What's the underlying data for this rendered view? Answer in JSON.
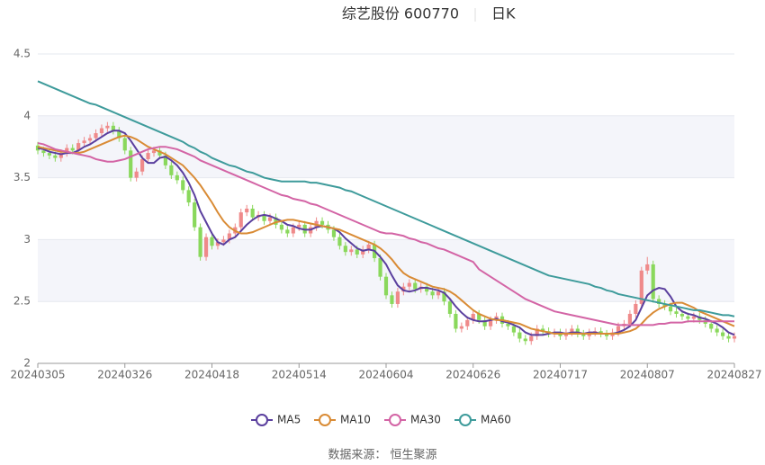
{
  "chart_data": {
    "type": "candlestick",
    "title": "综艺股份 600770",
    "subtitle": "日K",
    "source": "数据来源： 恒生聚源",
    "up_color": "#ef8a8a",
    "down_color": "#8ad85c",
    "split_area": true,
    "legend": "bottom",
    "ylim": [
      2,
      4.5
    ],
    "yticks": [
      2,
      2.5,
      3,
      3.5,
      4,
      4.5
    ],
    "categories": [
      "20240305",
      null,
      null,
      null,
      null,
      null,
      null,
      null,
      null,
      null,
      null,
      null,
      null,
      null,
      null,
      "20240326",
      null,
      null,
      null,
      null,
      null,
      null,
      null,
      null,
      null,
      null,
      null,
      null,
      null,
      null,
      "20240418",
      null,
      null,
      null,
      null,
      null,
      null,
      null,
      null,
      null,
      null,
      null,
      null,
      null,
      null,
      "20240514",
      null,
      null,
      null,
      null,
      null,
      null,
      null,
      null,
      null,
      null,
      null,
      null,
      null,
      null,
      "20240604",
      null,
      null,
      null,
      null,
      null,
      null,
      null,
      null,
      null,
      null,
      null,
      null,
      null,
      null,
      "20240626",
      null,
      null,
      null,
      null,
      null,
      null,
      null,
      null,
      null,
      null,
      null,
      null,
      null,
      null,
      "20240717",
      null,
      null,
      null,
      null,
      null,
      null,
      null,
      null,
      null,
      null,
      null,
      null,
      null,
      null,
      "20240807",
      null,
      null,
      null,
      null,
      null,
      null,
      null,
      null,
      null,
      null,
      null,
      null,
      null,
      null,
      "20240827"
    ],
    "ohlc": [
      [
        3.76,
        3.72,
        3.69,
        3.79
      ],
      [
        3.72,
        3.7,
        3.67,
        3.75
      ],
      [
        3.7,
        3.68,
        3.65,
        3.73
      ],
      [
        3.68,
        3.66,
        3.63,
        3.71
      ],
      [
        3.66,
        3.7,
        3.63,
        3.73
      ],
      [
        3.7,
        3.74,
        3.67,
        3.77
      ],
      [
        3.74,
        3.72,
        3.69,
        3.77
      ],
      [
        3.72,
        3.78,
        3.69,
        3.81
      ],
      [
        3.78,
        3.8,
        3.75,
        3.83
      ],
      [
        3.8,
        3.82,
        3.77,
        3.85
      ],
      [
        3.82,
        3.86,
        3.79,
        3.89
      ],
      [
        3.86,
        3.9,
        3.83,
        3.93
      ],
      [
        3.9,
        3.92,
        3.87,
        3.95
      ],
      [
        3.92,
        3.88,
        3.85,
        3.95
      ],
      [
        3.88,
        3.82,
        3.79,
        3.91
      ],
      [
        3.82,
        3.72,
        3.69,
        3.85
      ],
      [
        3.72,
        3.5,
        3.47,
        3.75
      ],
      [
        3.5,
        3.55,
        3.47,
        3.58
      ],
      [
        3.55,
        3.65,
        3.52,
        3.68
      ],
      [
        3.65,
        3.7,
        3.62,
        3.73
      ],
      [
        3.7,
        3.72,
        3.67,
        3.75
      ],
      [
        3.72,
        3.68,
        3.65,
        3.75
      ],
      [
        3.68,
        3.6,
        3.57,
        3.71
      ],
      [
        3.6,
        3.52,
        3.49,
        3.63
      ],
      [
        3.52,
        3.48,
        3.45,
        3.55
      ],
      [
        3.48,
        3.4,
        3.37,
        3.51
      ],
      [
        3.4,
        3.3,
        3.27,
        3.43
      ],
      [
        3.3,
        3.1,
        3.07,
        3.33
      ],
      [
        3.1,
        2.86,
        2.83,
        3.13
      ],
      [
        2.86,
        3.02,
        2.83,
        3.05
      ],
      [
        3.02,
        2.95,
        2.92,
        3.05
      ],
      [
        2.95,
        2.98,
        2.92,
        3.01
      ],
      [
        2.98,
        3.0,
        2.95,
        3.03
      ],
      [
        3.0,
        3.05,
        2.97,
        3.08
      ],
      [
        3.05,
        3.1,
        3.02,
        3.13
      ],
      [
        3.1,
        3.22,
        3.07,
        3.25
      ],
      [
        3.22,
        3.25,
        3.19,
        3.28
      ],
      [
        3.25,
        3.18,
        3.15,
        3.28
      ],
      [
        3.18,
        3.2,
        3.15,
        3.23
      ],
      [
        3.2,
        3.15,
        3.12,
        3.23
      ],
      [
        3.15,
        3.18,
        3.12,
        3.21
      ],
      [
        3.18,
        3.12,
        3.09,
        3.21
      ],
      [
        3.12,
        3.08,
        3.05,
        3.15
      ],
      [
        3.08,
        3.05,
        3.02,
        3.11
      ],
      [
        3.05,
        3.1,
        3.02,
        3.13
      ],
      [
        3.1,
        3.12,
        3.07,
        3.15
      ],
      [
        3.12,
        3.05,
        3.02,
        3.15
      ],
      [
        3.05,
        3.1,
        3.02,
        3.13
      ],
      [
        3.1,
        3.15,
        3.07,
        3.18
      ],
      [
        3.15,
        3.12,
        3.09,
        3.18
      ],
      [
        3.12,
        3.08,
        3.05,
        3.15
      ],
      [
        3.08,
        3.02,
        2.99,
        3.11
      ],
      [
        3.02,
        2.95,
        2.92,
        3.05
      ],
      [
        2.95,
        2.9,
        2.87,
        2.98
      ],
      [
        2.9,
        2.92,
        2.87,
        2.95
      ],
      [
        2.92,
        2.88,
        2.85,
        2.95
      ],
      [
        2.88,
        2.92,
        2.85,
        2.95
      ],
      [
        2.92,
        2.96,
        2.89,
        2.99
      ],
      [
        2.96,
        2.85,
        2.82,
        2.99
      ],
      [
        2.85,
        2.7,
        2.67,
        2.88
      ],
      [
        2.7,
        2.55,
        2.52,
        2.73
      ],
      [
        2.55,
        2.48,
        2.45,
        2.58
      ],
      [
        2.48,
        2.58,
        2.45,
        2.61
      ],
      [
        2.58,
        2.62,
        2.55,
        2.65
      ],
      [
        2.62,
        2.65,
        2.59,
        2.68
      ],
      [
        2.65,
        2.6,
        2.57,
        2.68
      ],
      [
        2.6,
        2.62,
        2.57,
        2.65
      ],
      [
        2.62,
        2.58,
        2.55,
        2.65
      ],
      [
        2.58,
        2.55,
        2.52,
        2.61
      ],
      [
        2.55,
        2.58,
        2.52,
        2.61
      ],
      [
        2.58,
        2.5,
        2.47,
        2.61
      ],
      [
        2.5,
        2.4,
        2.37,
        2.53
      ],
      [
        2.4,
        2.28,
        2.25,
        2.43
      ],
      [
        2.28,
        2.3,
        2.25,
        2.33
      ],
      [
        2.3,
        2.35,
        2.27,
        2.38
      ],
      [
        2.35,
        2.4,
        2.32,
        2.43
      ],
      [
        2.4,
        2.35,
        2.32,
        2.43
      ],
      [
        2.35,
        2.3,
        2.27,
        2.38
      ],
      [
        2.3,
        2.35,
        2.27,
        2.38
      ],
      [
        2.35,
        2.38,
        2.32,
        2.41
      ],
      [
        2.38,
        2.32,
        2.29,
        2.41
      ],
      [
        2.32,
        2.3,
        2.27,
        2.35
      ],
      [
        2.3,
        2.25,
        2.22,
        2.33
      ],
      [
        2.25,
        2.2,
        2.17,
        2.28
      ],
      [
        2.2,
        2.18,
        2.15,
        2.23
      ],
      [
        2.18,
        2.22,
        2.15,
        2.25
      ],
      [
        2.22,
        2.28,
        2.19,
        2.31
      ],
      [
        2.28,
        2.26,
        2.23,
        2.31
      ],
      [
        2.26,
        2.24,
        2.21,
        2.29
      ],
      [
        2.24,
        2.25,
        2.21,
        2.28
      ],
      [
        2.25,
        2.22,
        2.19,
        2.28
      ],
      [
        2.22,
        2.25,
        2.19,
        2.28
      ],
      [
        2.25,
        2.28,
        2.22,
        2.31
      ],
      [
        2.28,
        2.24,
        2.21,
        2.31
      ],
      [
        2.24,
        2.22,
        2.19,
        2.27
      ],
      [
        2.22,
        2.25,
        2.19,
        2.28
      ],
      [
        2.25,
        2.26,
        2.22,
        2.29
      ],
      [
        2.26,
        2.24,
        2.21,
        2.29
      ],
      [
        2.24,
        2.22,
        2.19,
        2.27
      ],
      [
        2.22,
        2.25,
        2.19,
        2.28
      ],
      [
        2.25,
        2.3,
        2.22,
        2.33
      ],
      [
        2.3,
        2.32,
        2.27,
        2.35
      ],
      [
        2.32,
        2.4,
        2.29,
        2.43
      ],
      [
        2.4,
        2.48,
        2.37,
        2.51
      ],
      [
        2.48,
        2.75,
        2.45,
        2.78
      ],
      [
        2.75,
        2.8,
        2.72,
        2.86
      ],
      [
        2.8,
        2.52,
        2.49,
        2.83
      ],
      [
        2.52,
        2.48,
        2.45,
        2.55
      ],
      [
        2.48,
        2.46,
        2.43,
        2.51
      ],
      [
        2.46,
        2.42,
        2.39,
        2.49
      ],
      [
        2.42,
        2.4,
        2.37,
        2.45
      ],
      [
        2.4,
        2.38,
        2.35,
        2.43
      ],
      [
        2.38,
        2.36,
        2.33,
        2.41
      ],
      [
        2.36,
        2.38,
        2.33,
        2.41
      ],
      [
        2.38,
        2.35,
        2.32,
        2.41
      ],
      [
        2.35,
        2.32,
        2.29,
        2.38
      ],
      [
        2.32,
        2.28,
        2.25,
        2.35
      ],
      [
        2.28,
        2.25,
        2.22,
        2.31
      ],
      [
        2.25,
        2.22,
        2.19,
        2.28
      ],
      [
        2.22,
        2.2,
        2.17,
        2.25
      ],
      [
        2.2,
        2.22,
        2.17,
        2.25
      ]
    ],
    "series": [
      {
        "name": "MA5",
        "color": "#5a3f9e",
        "values": [
          3.74,
          3.73,
          3.71,
          3.7,
          3.69,
          3.7,
          3.7,
          3.72,
          3.75,
          3.77,
          3.8,
          3.83,
          3.86,
          3.88,
          3.88,
          3.86,
          3.8,
          3.73,
          3.66,
          3.62,
          3.62,
          3.66,
          3.67,
          3.64,
          3.6,
          3.54,
          3.46,
          3.36,
          3.23,
          3.14,
          3.05,
          2.98,
          2.96,
          3.0,
          3.02,
          3.07,
          3.12,
          3.16,
          3.19,
          3.2,
          3.19,
          3.17,
          3.15,
          3.12,
          3.11,
          3.09,
          3.08,
          3.08,
          3.1,
          3.11,
          3.1,
          3.09,
          3.06,
          3.01,
          2.97,
          2.93,
          2.91,
          2.92,
          2.91,
          2.86,
          2.8,
          2.71,
          2.63,
          2.59,
          2.58,
          2.59,
          2.61,
          2.61,
          2.6,
          2.59,
          2.57,
          2.52,
          2.46,
          2.41,
          2.37,
          2.35,
          2.34,
          2.34,
          2.35,
          2.36,
          2.34,
          2.33,
          2.31,
          2.29,
          2.25,
          2.23,
          2.23,
          2.23,
          2.24,
          2.25,
          2.25,
          2.24,
          2.25,
          2.25,
          2.24,
          2.25,
          2.25,
          2.24,
          2.24,
          2.24,
          2.25,
          2.27,
          2.3,
          2.35,
          2.45,
          2.55,
          2.59,
          2.61,
          2.6,
          2.54,
          2.46,
          2.42,
          2.4,
          2.39,
          2.37,
          2.36,
          2.34,
          2.32,
          2.29,
          2.25,
          2.23
        ]
      },
      {
        "name": "MA10",
        "color": "#d98b35",
        "values": [
          3.75,
          3.74,
          3.73,
          3.72,
          3.71,
          3.71,
          3.7,
          3.7,
          3.71,
          3.73,
          3.75,
          3.77,
          3.79,
          3.81,
          3.83,
          3.84,
          3.83,
          3.81,
          3.78,
          3.75,
          3.73,
          3.71,
          3.69,
          3.66,
          3.63,
          3.6,
          3.55,
          3.5,
          3.44,
          3.37,
          3.3,
          3.22,
          3.15,
          3.1,
          3.07,
          3.05,
          3.05,
          3.06,
          3.08,
          3.1,
          3.12,
          3.14,
          3.15,
          3.16,
          3.16,
          3.15,
          3.14,
          3.13,
          3.12,
          3.11,
          3.1,
          3.09,
          3.08,
          3.06,
          3.04,
          3.02,
          3.0,
          2.98,
          2.96,
          2.93,
          2.89,
          2.84,
          2.78,
          2.73,
          2.7,
          2.68,
          2.66,
          2.64,
          2.62,
          2.61,
          2.6,
          2.58,
          2.55,
          2.51,
          2.47,
          2.43,
          2.4,
          2.38,
          2.36,
          2.35,
          2.35,
          2.34,
          2.33,
          2.32,
          2.3,
          2.28,
          2.27,
          2.26,
          2.25,
          2.24,
          2.24,
          2.24,
          2.24,
          2.24,
          2.24,
          2.24,
          2.24,
          2.24,
          2.24,
          2.24,
          2.24,
          2.25,
          2.26,
          2.28,
          2.32,
          2.37,
          2.41,
          2.44,
          2.46,
          2.48,
          2.49,
          2.49,
          2.47,
          2.45,
          2.42,
          2.4,
          2.38,
          2.36,
          2.34,
          2.32,
          2.3
        ]
      },
      {
        "name": "MA30",
        "color": "#d364a5",
        "values": [
          3.78,
          3.77,
          3.75,
          3.73,
          3.72,
          3.71,
          3.7,
          3.69,
          3.68,
          3.67,
          3.65,
          3.64,
          3.63,
          3.63,
          3.64,
          3.65,
          3.67,
          3.69,
          3.71,
          3.73,
          3.74,
          3.75,
          3.75,
          3.74,
          3.73,
          3.71,
          3.69,
          3.67,
          3.64,
          3.62,
          3.6,
          3.58,
          3.56,
          3.54,
          3.52,
          3.5,
          3.48,
          3.46,
          3.44,
          3.42,
          3.4,
          3.38,
          3.36,
          3.35,
          3.33,
          3.32,
          3.31,
          3.29,
          3.28,
          3.26,
          3.24,
          3.22,
          3.2,
          3.18,
          3.16,
          3.14,
          3.12,
          3.1,
          3.08,
          3.06,
          3.05,
          3.05,
          3.04,
          3.03,
          3.01,
          3.0,
          2.98,
          2.97,
          2.95,
          2.93,
          2.92,
          2.9,
          2.88,
          2.86,
          2.84,
          2.82,
          2.76,
          2.73,
          2.7,
          2.67,
          2.64,
          2.61,
          2.58,
          2.55,
          2.52,
          2.5,
          2.48,
          2.46,
          2.44,
          2.42,
          2.41,
          2.4,
          2.39,
          2.38,
          2.37,
          2.36,
          2.35,
          2.34,
          2.33,
          2.32,
          2.31,
          2.31,
          2.31,
          2.31,
          2.31,
          2.31,
          2.31,
          2.32,
          2.32,
          2.33,
          2.33,
          2.33,
          2.34,
          2.34,
          2.34,
          2.34,
          2.34,
          2.34,
          2.34,
          2.34,
          2.34
        ]
      },
      {
        "name": "MA60",
        "color": "#3e9b9b",
        "values": [
          4.28,
          4.26,
          4.24,
          4.22,
          4.2,
          4.18,
          4.16,
          4.14,
          4.12,
          4.1,
          4.09,
          4.07,
          4.05,
          4.03,
          4.01,
          3.99,
          3.97,
          3.95,
          3.93,
          3.91,
          3.89,
          3.87,
          3.85,
          3.83,
          3.81,
          3.79,
          3.76,
          3.74,
          3.71,
          3.69,
          3.66,
          3.64,
          3.62,
          3.6,
          3.59,
          3.57,
          3.55,
          3.54,
          3.52,
          3.5,
          3.49,
          3.48,
          3.47,
          3.47,
          3.47,
          3.47,
          3.47,
          3.46,
          3.46,
          3.45,
          3.44,
          3.43,
          3.42,
          3.4,
          3.39,
          3.37,
          3.35,
          3.33,
          3.31,
          3.29,
          3.27,
          3.25,
          3.23,
          3.21,
          3.19,
          3.17,
          3.15,
          3.13,
          3.11,
          3.09,
          3.07,
          3.05,
          3.03,
          3.01,
          2.99,
          2.97,
          2.95,
          2.93,
          2.91,
          2.89,
          2.87,
          2.85,
          2.83,
          2.81,
          2.79,
          2.77,
          2.75,
          2.73,
          2.71,
          2.7,
          2.69,
          2.68,
          2.67,
          2.66,
          2.65,
          2.64,
          2.62,
          2.61,
          2.59,
          2.58,
          2.56,
          2.55,
          2.54,
          2.53,
          2.52,
          2.51,
          2.5,
          2.49,
          2.48,
          2.47,
          2.46,
          2.45,
          2.44,
          2.43,
          2.43,
          2.42,
          2.41,
          2.4,
          2.39,
          2.39,
          2.38
        ]
      }
    ]
  }
}
